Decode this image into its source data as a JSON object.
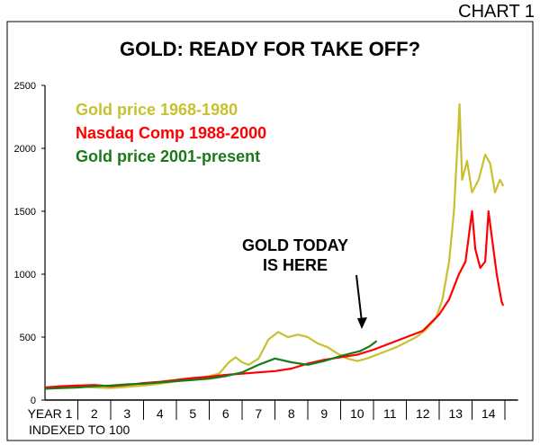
{
  "header": {
    "chart_label": "CHART 1",
    "title": "GOLD: READY FOR TAKE OFF?"
  },
  "annotation": {
    "line1": "GOLD TODAY",
    "line2": "IS HERE"
  },
  "footer": {
    "note": "INDEXED TO 100"
  },
  "colors": {
    "gold_1968": "#c8c030",
    "nasdaq": "#ff0000",
    "gold_2001": "#1a7a1a",
    "axis": "#000000"
  },
  "chart_data": {
    "type": "line",
    "title": "GOLD: READY FOR TAKE OFF?",
    "xlabel": "",
    "ylabel": "",
    "xlim": [
      0,
      14.4
    ],
    "ylim": [
      0,
      2500
    ],
    "y_ticks": [
      0,
      500,
      1000,
      1500,
      2000,
      2500
    ],
    "x_tick_labels": [
      "YEAR 1",
      "2",
      "3",
      "4",
      "5",
      "6",
      "7",
      "8",
      "9",
      "10",
      "11",
      "12",
      "13",
      "14"
    ],
    "legend_position": "top-left",
    "grid": false,
    "series": [
      {
        "name": "Gold price 1968-1980",
        "color": "#c8c030",
        "points": [
          [
            0,
            100
          ],
          [
            0.5,
            105
          ],
          [
            1,
            110
          ],
          [
            1.5,
            100
          ],
          [
            2,
            95
          ],
          [
            2.5,
            105
          ],
          [
            3,
            115
          ],
          [
            3.5,
            130
          ],
          [
            4,
            150
          ],
          [
            4.5,
            170
          ],
          [
            5,
            190
          ],
          [
            5.3,
            210
          ],
          [
            5.6,
            300
          ],
          [
            5.8,
            340
          ],
          [
            6.0,
            300
          ],
          [
            6.2,
            280
          ],
          [
            6.5,
            330
          ],
          [
            6.8,
            480
          ],
          [
            7.1,
            540
          ],
          [
            7.4,
            500
          ],
          [
            7.7,
            520
          ],
          [
            8.0,
            500
          ],
          [
            8.3,
            450
          ],
          [
            8.6,
            420
          ],
          [
            8.9,
            370
          ],
          [
            9.2,
            330
          ],
          [
            9.5,
            310
          ],
          [
            9.8,
            330
          ],
          [
            10.1,
            360
          ],
          [
            10.4,
            390
          ],
          [
            10.7,
            420
          ],
          [
            11.0,
            460
          ],
          [
            11.3,
            500
          ],
          [
            11.6,
            560
          ],
          [
            11.9,
            650
          ],
          [
            12.1,
            800
          ],
          [
            12.3,
            1100
          ],
          [
            12.45,
            1500
          ],
          [
            12.55,
            2000
          ],
          [
            12.62,
            2350
          ],
          [
            12.7,
            1750
          ],
          [
            12.85,
            1900
          ],
          [
            13.0,
            1650
          ],
          [
            13.2,
            1750
          ],
          [
            13.4,
            1950
          ],
          [
            13.55,
            1880
          ],
          [
            13.7,
            1650
          ],
          [
            13.85,
            1750
          ],
          [
            13.95,
            1700
          ]
        ]
      },
      {
        "name": "Nasdaq Comp 1988-2000",
        "color": "#ff0000",
        "points": [
          [
            0,
            100
          ],
          [
            0.5,
            110
          ],
          [
            1,
            115
          ],
          [
            1.5,
            120
          ],
          [
            2,
            110
          ],
          [
            2.5,
            120
          ],
          [
            3,
            135
          ],
          [
            3.5,
            145
          ],
          [
            4,
            160
          ],
          [
            4.5,
            175
          ],
          [
            5,
            185
          ],
          [
            5.5,
            200
          ],
          [
            6.0,
            210
          ],
          [
            6.5,
            220
          ],
          [
            7.0,
            230
          ],
          [
            7.5,
            250
          ],
          [
            8.0,
            290
          ],
          [
            8.5,
            320
          ],
          [
            9.0,
            340
          ],
          [
            9.5,
            360
          ],
          [
            10.0,
            400
          ],
          [
            10.5,
            450
          ],
          [
            11.0,
            500
          ],
          [
            11.5,
            550
          ],
          [
            12.0,
            680
          ],
          [
            12.3,
            800
          ],
          [
            12.6,
            1000
          ],
          [
            12.8,
            1100
          ],
          [
            13.0,
            1500
          ],
          [
            13.1,
            1200
          ],
          [
            13.25,
            1050
          ],
          [
            13.4,
            1100
          ],
          [
            13.5,
            1500
          ],
          [
            13.6,
            1300
          ],
          [
            13.75,
            1000
          ],
          [
            13.9,
            780
          ],
          [
            13.95,
            750
          ]
        ]
      },
      {
        "name": "Gold price 2001-present",
        "color": "#1a7a1a",
        "points": [
          [
            0,
            90
          ],
          [
            0.5,
            95
          ],
          [
            1,
            100
          ],
          [
            1.5,
            110
          ],
          [
            2,
            115
          ],
          [
            2.5,
            125
          ],
          [
            3,
            130
          ],
          [
            3.5,
            140
          ],
          [
            4,
            150
          ],
          [
            4.5,
            160
          ],
          [
            5,
            170
          ],
          [
            5.5,
            190
          ],
          [
            6.0,
            220
          ],
          [
            6.5,
            280
          ],
          [
            7.0,
            330
          ],
          [
            7.5,
            300
          ],
          [
            8.0,
            280
          ],
          [
            8.5,
            310
          ],
          [
            9.0,
            350
          ],
          [
            9.3,
            370
          ],
          [
            9.6,
            390
          ],
          [
            9.9,
            430
          ],
          [
            10.1,
            470
          ]
        ]
      }
    ]
  }
}
